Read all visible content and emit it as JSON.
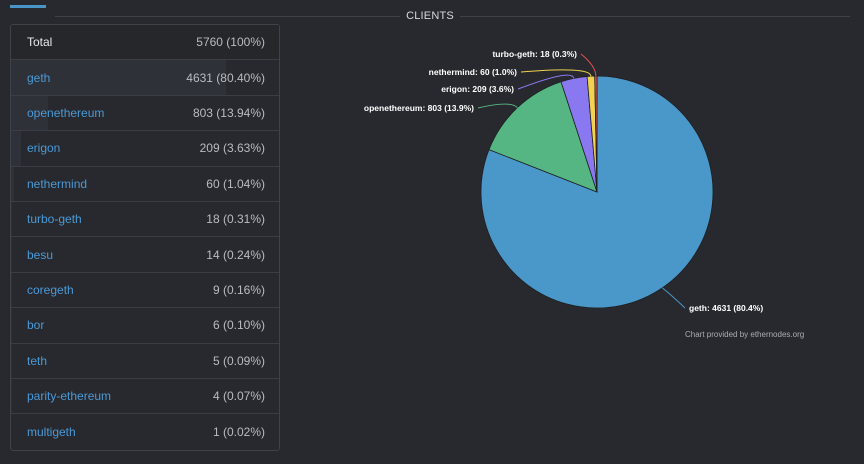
{
  "section_title": "CLIENTS",
  "table": {
    "rows": [
      {
        "name": "Total",
        "value": "5760 (100%)",
        "fraction": 1.0
      },
      {
        "name": "geth",
        "value": "4631 (80.40%)",
        "fraction": 0.804
      },
      {
        "name": "openethereum",
        "value": "803 (13.94%)",
        "fraction": 0.1394
      },
      {
        "name": "erigon",
        "value": "209 (3.63%)",
        "fraction": 0.0363
      },
      {
        "name": "nethermind",
        "value": "60 (1.04%)",
        "fraction": 0.0104
      },
      {
        "name": "turbo-geth",
        "value": "18 (0.31%)",
        "fraction": 0.0031
      },
      {
        "name": "besu",
        "value": "14 (0.24%)",
        "fraction": 0.0024
      },
      {
        "name": "coregeth",
        "value": "9 (0.16%)",
        "fraction": 0.0016
      },
      {
        "name": "bor",
        "value": "6 (0.10%)",
        "fraction": 0.001
      },
      {
        "name": "teth",
        "value": "5 (0.09%)",
        "fraction": 0.0009
      },
      {
        "name": "parity-ethereum",
        "value": "4 (0.07%)",
        "fraction": 0.0007
      },
      {
        "name": "multigeth",
        "value": "1 (0.02%)",
        "fraction": 0.0002
      }
    ]
  },
  "chart_data": {
    "type": "pie",
    "slices": [
      {
        "name": "geth",
        "value": 4631,
        "label": "geth: 4631 (80.4%)",
        "color": "#4a98c9"
      },
      {
        "name": "openethereum",
        "value": 803,
        "label": "openethereum: 803 (13.9%)",
        "color": "#56b683"
      },
      {
        "name": "erigon",
        "value": 209,
        "label": "erigon: 209 (3.6%)",
        "color": "#8a78f0"
      },
      {
        "name": "nethermind",
        "value": 60,
        "label": "nethermind: 60 (1.0%)",
        "color": "#f2d250"
      },
      {
        "name": "turbo-geth",
        "value": 18,
        "label": "turbo-geth: 18 (0.3%)",
        "color": "#e4534e"
      }
    ],
    "credit": "Chart provided by ethernodes.org"
  }
}
